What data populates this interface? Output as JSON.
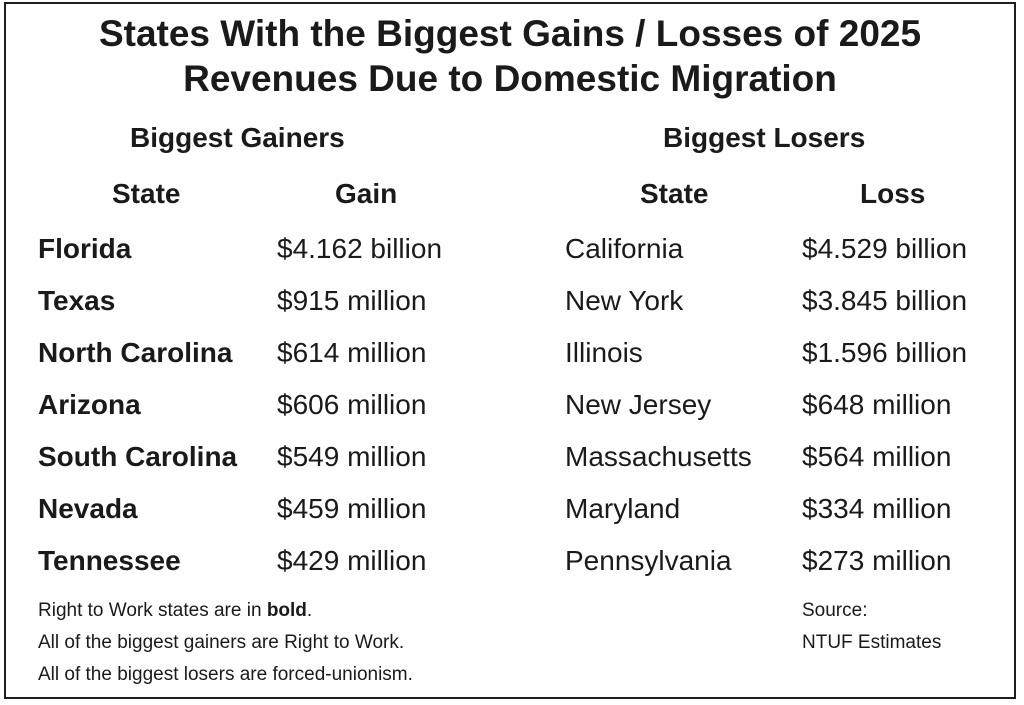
{
  "title": {
    "line1": "States With the Biggest Gains / Losses of 2025",
    "line2": "Revenues Due to Domestic Migration"
  },
  "chart_data": {
    "type": "table",
    "title": "States With the Biggest Gains / Losses of 2025 Revenues Due to Domestic Migration",
    "gainers": {
      "heading": "Biggest Gainers",
      "columns": [
        "State",
        "Gain"
      ],
      "rows": [
        {
          "state": "Florida",
          "value": "$4.162 billion",
          "bold": true
        },
        {
          "state": "Texas",
          "value": "$915 million",
          "bold": true
        },
        {
          "state": "North Carolina",
          "value": "$614 million",
          "bold": true
        },
        {
          "state": "Arizona",
          "value": "$606 million",
          "bold": true
        },
        {
          "state": "South Carolina",
          "value": "$549 million",
          "bold": true
        },
        {
          "state": "Nevada",
          "value": "$459 million",
          "bold": true
        },
        {
          "state": "Tennessee",
          "value": "$429 million",
          "bold": true
        }
      ]
    },
    "losers": {
      "heading": "Biggest Losers",
      "columns": [
        "State",
        "Loss"
      ],
      "rows": [
        {
          "state": "California",
          "value": "$4.529 billion",
          "bold": false
        },
        {
          "state": "New York",
          "value": "$3.845 billion",
          "bold": false
        },
        {
          "state": "Illinois",
          "value": "$1.596 billion",
          "bold": false
        },
        {
          "state": "New Jersey",
          "value": "$648 million",
          "bold": false
        },
        {
          "state": "Massachusetts",
          "value": "$564 million",
          "bold": false
        },
        {
          "state": "Maryland",
          "value": "$334 million",
          "bold": false
        },
        {
          "state": "Pennsylvania",
          "value": "$273 million",
          "bold": false
        }
      ]
    }
  },
  "notes": {
    "line1_prefix": "Right to Work states are in ",
    "line1_bold": "bold",
    "line1_suffix": ".",
    "line2": "All of the biggest gainers are Right to Work.",
    "line3": "All of the biggest losers are forced-unionism."
  },
  "source": {
    "label": "Source:",
    "value": "NTUF Estimates"
  },
  "colors": {
    "text": "#1a1a1a",
    "border": "#1e1e1e",
    "background": "#ffffff"
  }
}
